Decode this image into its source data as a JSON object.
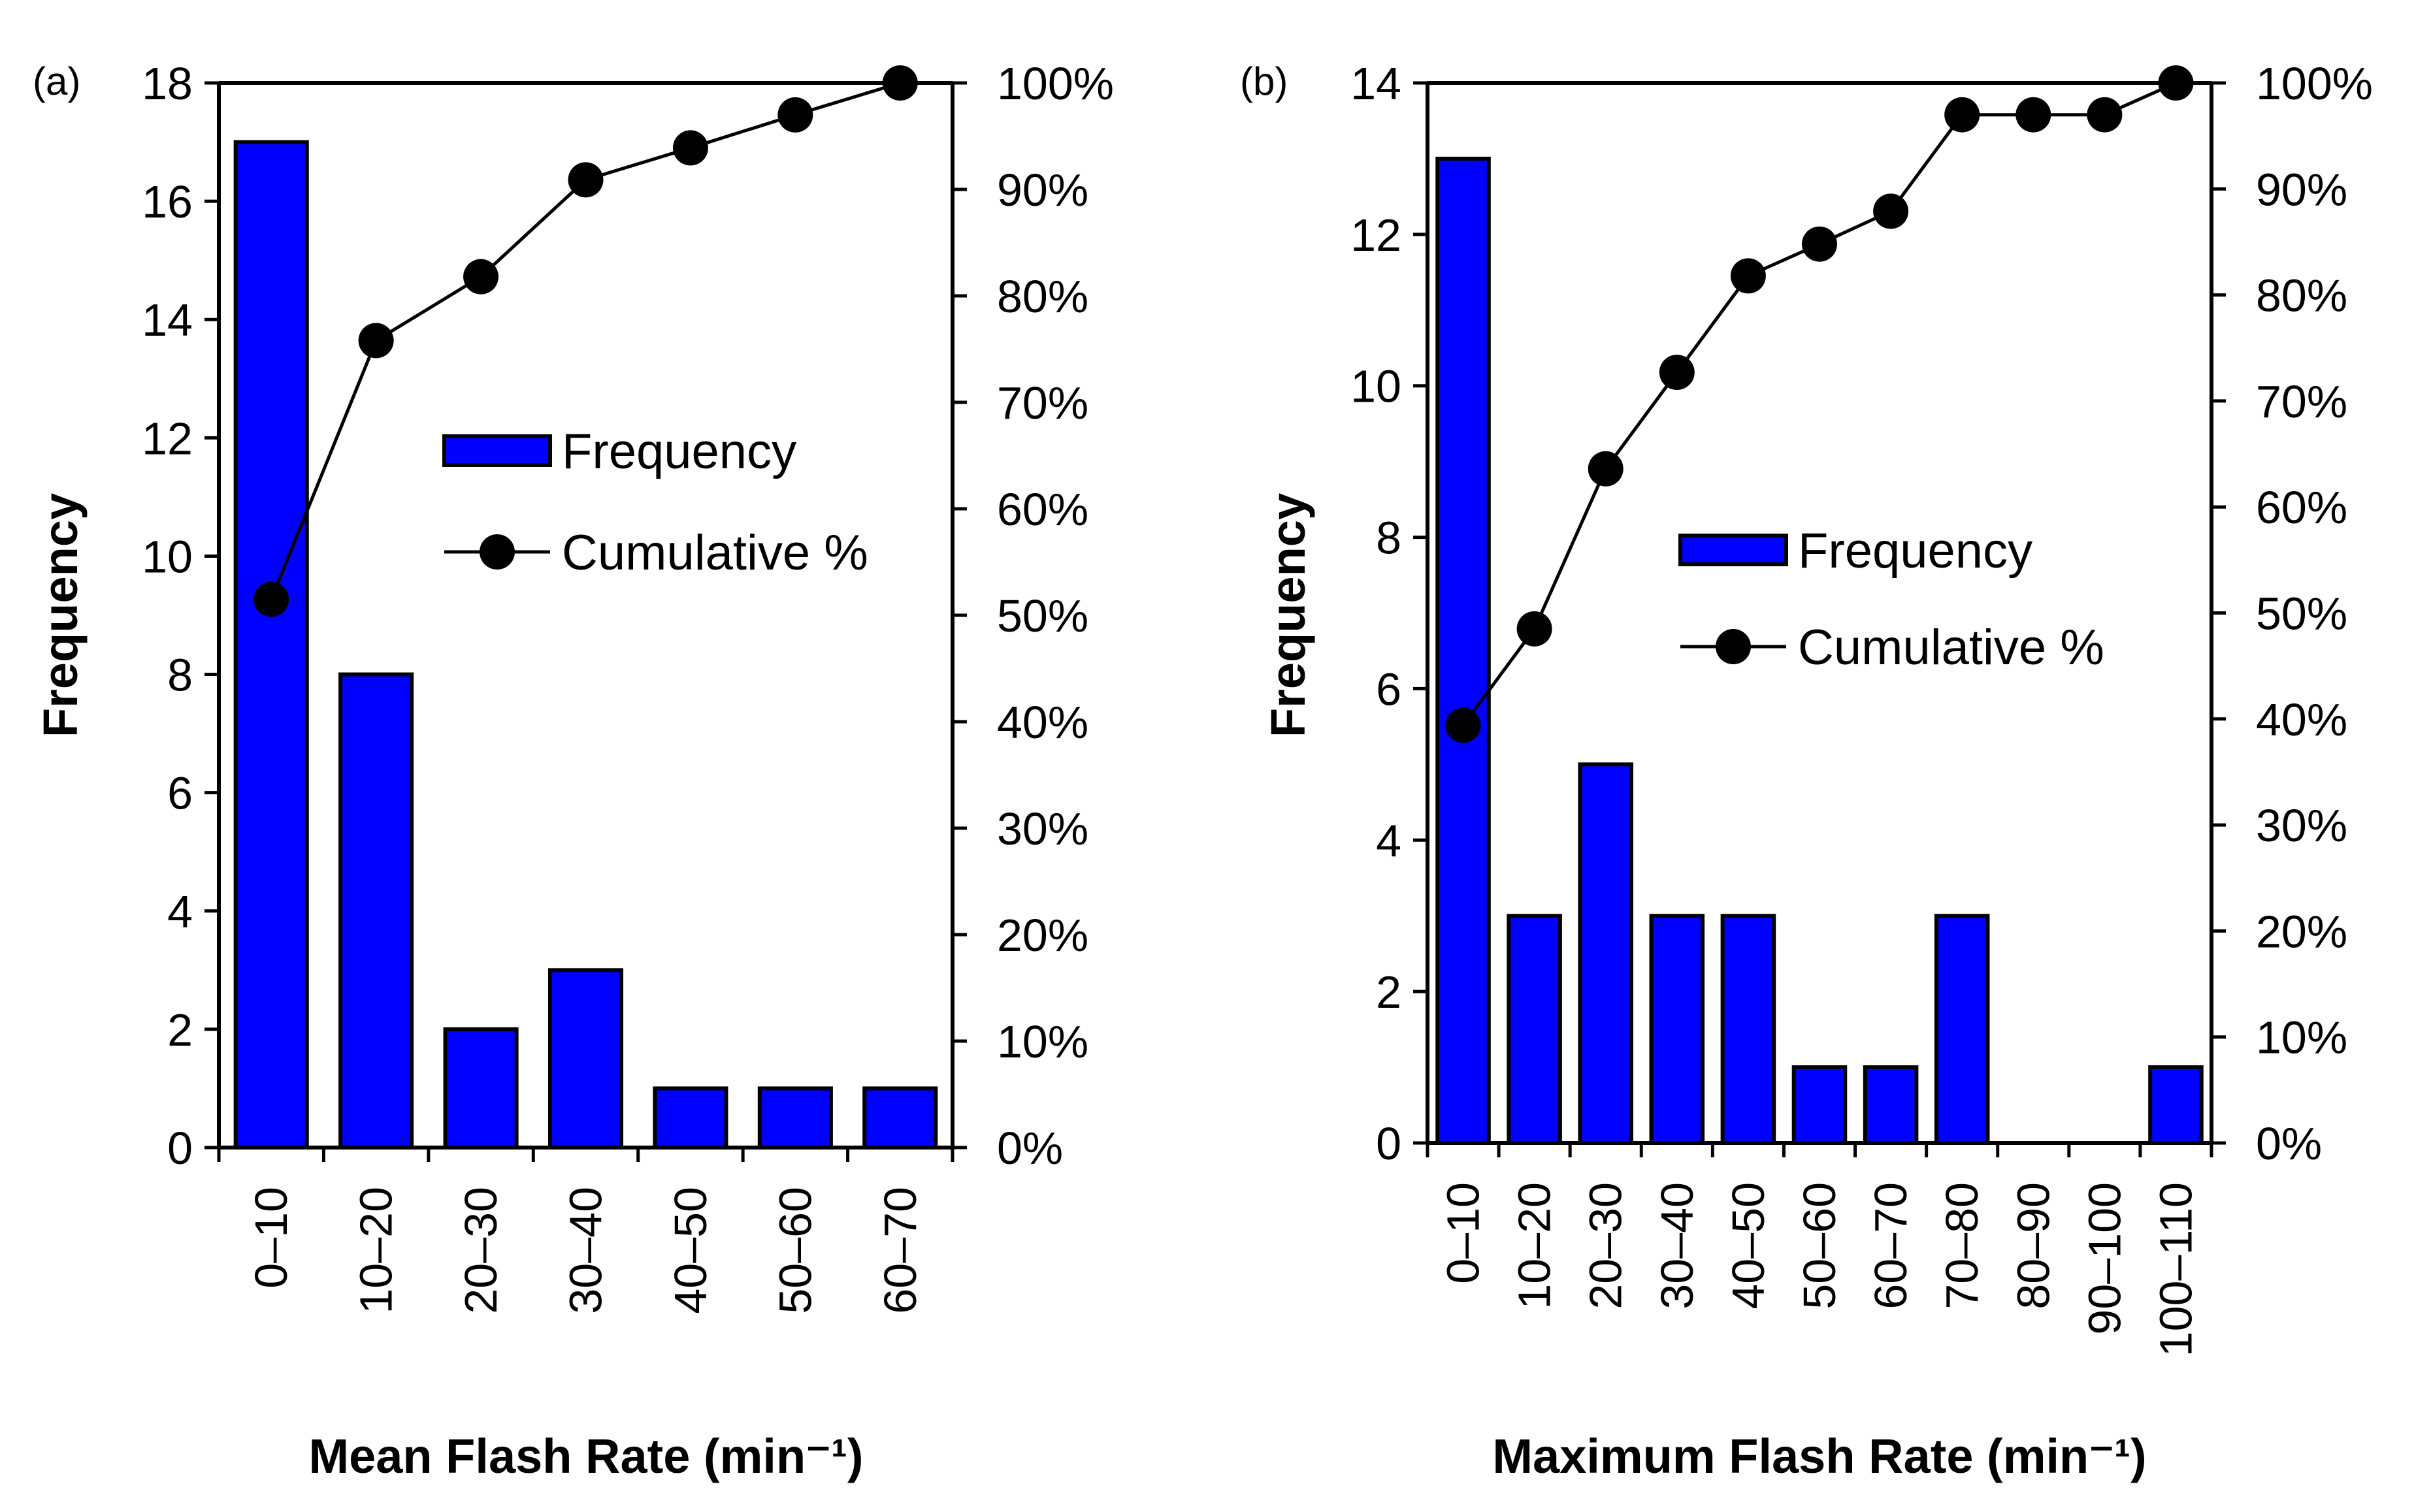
{
  "colors": {
    "bar_fill": "#0000ff",
    "bar_stroke": "#000000",
    "line": "#000000",
    "marker": "#000000",
    "axis": "#000000",
    "background": "#ffffff"
  },
  "chart_data": [
    {
      "type": "bar",
      "panel_label": "(a)",
      "title": "",
      "xlabel": "Mean Flash Rate (min⁻¹)",
      "ylabel": "Frequency",
      "categories": [
        "0–10",
        "10–20",
        "20–30",
        "30–40",
        "40–50",
        "50–60",
        "60–70"
      ],
      "series": [
        {
          "name": "Frequency",
          "kind": "bar",
          "axis": "left",
          "values": [
            17,
            8,
            2,
            3,
            1,
            1,
            1
          ]
        },
        {
          "name": "Cumulative %",
          "kind": "line",
          "axis": "right",
          "values": [
            51.5,
            75.8,
            81.8,
            90.9,
            93.9,
            97.0,
            100.0
          ]
        }
      ],
      "ylim": [
        0,
        18
      ],
      "yticks": [
        "0",
        "2",
        "4",
        "6",
        "8",
        "10",
        "12",
        "14",
        "16",
        "18"
      ],
      "y2lim": [
        0,
        100
      ],
      "y2ticks": [
        "0%",
        "10%",
        "20%",
        "30%",
        "40%",
        "50%",
        "60%",
        "70%",
        "80%",
        "90%",
        "100%"
      ],
      "legend": [
        "Frequency",
        "Cumulative %"
      ],
      "legend_position": "center-right",
      "grid": false
    },
    {
      "type": "bar",
      "panel_label": "(b)",
      "title": "",
      "xlabel": "Maximum Flash Rate (min⁻¹)",
      "ylabel": "Frequency",
      "categories": [
        "0–10",
        "10–20",
        "20–30",
        "30–40",
        "40–50",
        "50–60",
        "60–70",
        "70–80",
        "80–90",
        "90–100",
        "100–110"
      ],
      "series": [
        {
          "name": "Frequency",
          "kind": "bar",
          "axis": "left",
          "values": [
            13,
            3,
            5,
            3,
            3,
            1,
            1,
            3,
            0,
            0,
            1
          ]
        },
        {
          "name": "Cumulative %",
          "kind": "line",
          "axis": "right",
          "values": [
            39.4,
            48.5,
            63.6,
            72.7,
            81.8,
            84.8,
            87.9,
            97.0,
            97.0,
            97.0,
            100.0
          ]
        }
      ],
      "ylim": [
        0,
        14
      ],
      "yticks": [
        "0",
        "2",
        "4",
        "6",
        "8",
        "10",
        "12",
        "14"
      ],
      "y2lim": [
        0,
        100
      ],
      "y2ticks": [
        "0%",
        "10%",
        "20%",
        "30%",
        "40%",
        "50%",
        "60%",
        "70%",
        "80%",
        "90%",
        "100%"
      ],
      "legend": [
        "Frequency",
        "Cumulative %"
      ],
      "legend_position": "center-right",
      "grid": false
    }
  ]
}
